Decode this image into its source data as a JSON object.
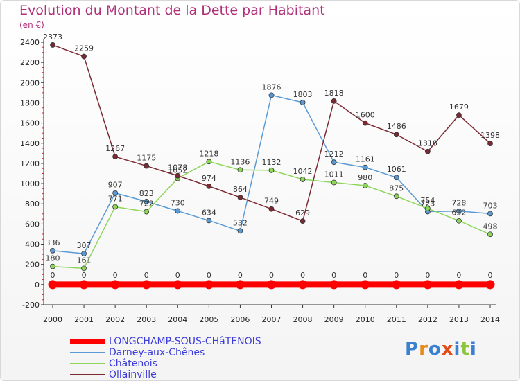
{
  "header": {
    "title": "Evolution du Montant de la Dette par Habitant",
    "unit": "(en €)"
  },
  "logo": {
    "text": "Proxiti",
    "colors": [
      "#3a7fd0",
      "#e88a1a",
      "#3a7fd0",
      "#e24a1a",
      "#3a7fd0",
      "#8cc43c",
      "#3a7fd0"
    ]
  },
  "chart_data": {
    "type": "line",
    "title": "Evolution du Montant de la Dette par Habitant",
    "ylabel": "(en €)",
    "xlabel": "",
    "ylim": [
      -200,
      2400
    ],
    "ytick_step": 200,
    "grid": false,
    "legend_position": "bottom-left",
    "x": [
      "2000",
      "2001",
      "2002",
      "2003",
      "2004",
      "2005",
      "2006",
      "2007",
      "2008",
      "2009",
      "2010",
      "2011",
      "2012",
      "2013",
      "2014"
    ],
    "y_ticks": [
      "-200",
      "0",
      "200",
      "400",
      "600",
      "800",
      "1000",
      "1200",
      "1400",
      "1600",
      "1800",
      "2000",
      "2200",
      "2400"
    ],
    "series": [
      {
        "name": "LONGCHAMP-SOUS-CHâTENOIS",
        "color": "#ff0000",
        "values": [
          0,
          0,
          0,
          0,
          0,
          0,
          0,
          0,
          0,
          0,
          0,
          0,
          0,
          0,
          0
        ],
        "labels": [
          "0",
          "0",
          "0",
          "0",
          "0",
          "0",
          "0",
          "0",
          "0",
          "0",
          "0",
          "0",
          "0",
          "0",
          "0"
        ]
      },
      {
        "name": "Darney-aux-Chênes",
        "color": "#5a9bd5",
        "values": [
          336,
          307,
          907,
          823,
          730,
          634,
          532,
          1876,
          1803,
          1212,
          1161,
          1061,
          723,
          728,
          703
        ],
        "labels": [
          "336",
          "307",
          "907",
          "823",
          "730",
          "634",
          "532",
          "1876",
          "1803",
          "1212",
          "1161",
          "1061",
          "723",
          "728",
          "703"
        ]
      },
      {
        "name": "Châtenois",
        "color": "#8ed65a",
        "values": [
          180,
          161,
          771,
          722,
          1052,
          1218,
          1136,
          1132,
          1042,
          1011,
          980,
          875,
          754,
          632,
          498
        ],
        "labels": [
          "180",
          "161",
          "771",
          "722",
          "1052",
          "1218",
          "1136",
          "1132",
          "1042",
          "1011",
          "980",
          "875",
          "754",
          "632",
          "498"
        ]
      },
      {
        "name": "Ollainville",
        "color": "#7a2a32",
        "values": [
          2373,
          2259,
          1267,
          1175,
          1078,
          974,
          864,
          749,
          629,
          1818,
          1600,
          1486,
          1318,
          1679,
          1398
        ],
        "labels": [
          "2373",
          "2259",
          "1267",
          "1175",
          "1078",
          "974",
          "864",
          "749",
          "629",
          "1818",
          "1600",
          "1486",
          "1318",
          "1679",
          "1398"
        ]
      }
    ]
  }
}
